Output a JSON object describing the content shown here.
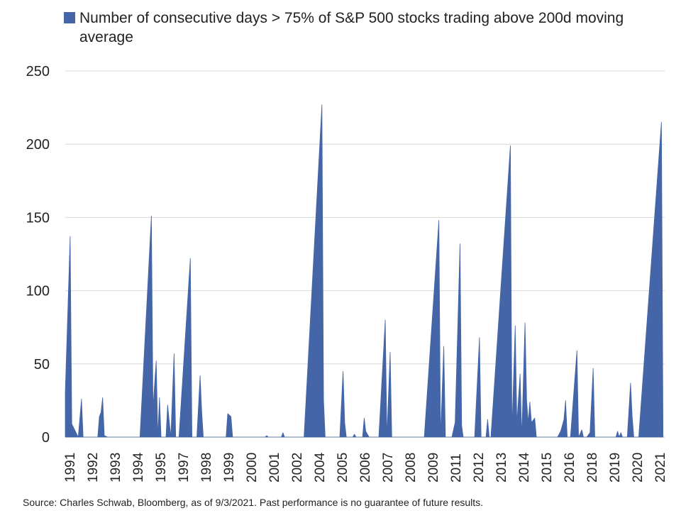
{
  "chart_data": {
    "type": "area",
    "title": "",
    "xlabel": "",
    "ylabel": "",
    "ylim": [
      0,
      250
    ],
    "yticks": [
      0,
      50,
      100,
      150,
      200,
      250
    ],
    "grid": "horizontal",
    "legend_placement": "top-left",
    "color": "#4466a8",
    "xtick_labels": [
      "1991",
      "1992",
      "1993",
      "1994",
      "1995",
      "1997",
      "1998",
      "1999",
      "2000",
      "2001",
      "2002",
      "2004",
      "2005",
      "2006",
      "2007",
      "2008",
      "2009",
      "2011",
      "2012",
      "2013",
      "2014",
      "2015",
      "2016",
      "2018",
      "2019",
      "2020",
      "2021"
    ],
    "series": [
      {
        "name": "Number of consecutive days > 75% of S&P 500 stocks trading above 200d moving average",
        "points": [
          {
            "x": "1991-01",
            "y": 30
          },
          {
            "x": "1991-04",
            "y": 137
          },
          {
            "x": "1991-05",
            "y": 9
          },
          {
            "x": "1991-09",
            "y": 0
          },
          {
            "x": "1991-11",
            "y": 26
          },
          {
            "x": "1991-12",
            "y": 0
          },
          {
            "x": "1992-09",
            "y": 0
          },
          {
            "x": "1992-10",
            "y": 14
          },
          {
            "x": "1992-11",
            "y": 17
          },
          {
            "x": "1992-12",
            "y": 27
          },
          {
            "x": "1993-01",
            "y": 1
          },
          {
            "x": "1993-03",
            "y": 0
          },
          {
            "x": "1994-11",
            "y": 0
          },
          {
            "x": "1995-06",
            "y": 151
          },
          {
            "x": "1995-07",
            "y": 20
          },
          {
            "x": "1995-09",
            "y": 52
          },
          {
            "x": "1995-10",
            "y": 0
          },
          {
            "x": "1995-11",
            "y": 27
          },
          {
            "x": "1995-12",
            "y": 0
          },
          {
            "x": "1996-03",
            "y": 0
          },
          {
            "x": "1996-04",
            "y": 22
          },
          {
            "x": "1996-06",
            "y": 0
          },
          {
            "x": "1996-08",
            "y": 57
          },
          {
            "x": "1996-09",
            "y": 0
          },
          {
            "x": "1996-11",
            "y": 0
          },
          {
            "x": "1997-06",
            "y": 122
          },
          {
            "x": "1997-07",
            "y": 0
          },
          {
            "x": "1997-10",
            "y": 0
          },
          {
            "x": "1997-12",
            "y": 42
          },
          {
            "x": "1998-01",
            "y": 17
          },
          {
            "x": "1998-02",
            "y": 0
          },
          {
            "x": "1999-04",
            "y": 0
          },
          {
            "x": "1999-05",
            "y": 16
          },
          {
            "x": "1999-07",
            "y": 14
          },
          {
            "x": "1999-08",
            "y": 0
          },
          {
            "x": "2001-04",
            "y": 0
          },
          {
            "x": "2001-05",
            "y": 1
          },
          {
            "x": "2001-06",
            "y": 0
          },
          {
            "x": "2002-02",
            "y": 0
          },
          {
            "x": "2002-03",
            "y": 3
          },
          {
            "x": "2002-04",
            "y": 0
          },
          {
            "x": "2003-04",
            "y": 0
          },
          {
            "x": "2004-03",
            "y": 227
          },
          {
            "x": "2004-04",
            "y": 25
          },
          {
            "x": "2004-05",
            "y": 0
          },
          {
            "x": "2005-02",
            "y": 0
          },
          {
            "x": "2005-04",
            "y": 45
          },
          {
            "x": "2005-05",
            "y": 10
          },
          {
            "x": "2005-06",
            "y": 0
          },
          {
            "x": "2005-10",
            "y": 0
          },
          {
            "x": "2005-11",
            "y": 2
          },
          {
            "x": "2005-12",
            "y": 0
          },
          {
            "x": "2006-04",
            "y": 0
          },
          {
            "x": "2006-05",
            "y": 13
          },
          {
            "x": "2006-06",
            "y": 4
          },
          {
            "x": "2006-08",
            "y": 0
          },
          {
            "x": "2007-02",
            "y": 0
          },
          {
            "x": "2007-06",
            "y": 80
          },
          {
            "x": "2007-07",
            "y": 0
          },
          {
            "x": "2007-09",
            "y": 58
          },
          {
            "x": "2007-10",
            "y": 0
          },
          {
            "x": "2009-06",
            "y": 0
          },
          {
            "x": "2010-03",
            "y": 148
          },
          {
            "x": "2010-04",
            "y": 0
          },
          {
            "x": "2010-06",
            "y": 62
          },
          {
            "x": "2010-07",
            "y": 0
          },
          {
            "x": "2010-11",
            "y": 0
          },
          {
            "x": "2011-01",
            "y": 10
          },
          {
            "x": "2011-04",
            "y": 132
          },
          {
            "x": "2011-05",
            "y": 8
          },
          {
            "x": "2011-06",
            "y": 0
          },
          {
            "x": "2012-01",
            "y": 0
          },
          {
            "x": "2012-04",
            "y": 68
          },
          {
            "x": "2012-05",
            "y": 0
          },
          {
            "x": "2012-08",
            "y": 0
          },
          {
            "x": "2012-09",
            "y": 12
          },
          {
            "x": "2012-10",
            "y": 0
          },
          {
            "x": "2012-11",
            "y": 0
          },
          {
            "x": "2013-11",
            "y": 199
          },
          {
            "x": "2013-12",
            "y": 5
          },
          {
            "x": "2014-02",
            "y": 76
          },
          {
            "x": "2014-03",
            "y": 10
          },
          {
            "x": "2014-05",
            "y": 43
          },
          {
            "x": "2014-06",
            "y": 0
          },
          {
            "x": "2014-08",
            "y": 78
          },
          {
            "x": "2014-09",
            "y": 25
          },
          {
            "x": "2014-10",
            "y": 10
          },
          {
            "x": "2014-11",
            "y": 24
          },
          {
            "x": "2014-12",
            "y": 10
          },
          {
            "x": "2015-02",
            "y": 13
          },
          {
            "x": "2015-03",
            "y": 0
          },
          {
            "x": "2016-04",
            "y": 0
          },
          {
            "x": "2016-06",
            "y": 4
          },
          {
            "x": "2016-08",
            "y": 12
          },
          {
            "x": "2016-09",
            "y": 25
          },
          {
            "x": "2016-10",
            "y": 0
          },
          {
            "x": "2016-12",
            "y": 0
          },
          {
            "x": "2017-04",
            "y": 59
          },
          {
            "x": "2017-05",
            "y": 0
          },
          {
            "x": "2017-07",
            "y": 5
          },
          {
            "x": "2017-08",
            "y": 0
          },
          {
            "x": "2017-10",
            "y": 0
          },
          {
            "x": "2017-12",
            "y": 3
          },
          {
            "x": "2018-02",
            "y": 47
          },
          {
            "x": "2018-03",
            "y": 0
          },
          {
            "x": "2019-04",
            "y": 0
          },
          {
            "x": "2019-05",
            "y": 4
          },
          {
            "x": "2019-06",
            "y": 0
          },
          {
            "x": "2019-07",
            "y": 3
          },
          {
            "x": "2019-08",
            "y": 0
          },
          {
            "x": "2019-11",
            "y": 0
          },
          {
            "x": "2020-01",
            "y": 37
          },
          {
            "x": "2020-02",
            "y": 14
          },
          {
            "x": "2020-03",
            "y": 0
          },
          {
            "x": "2020-06",
            "y": 0
          },
          {
            "x": "2021-08",
            "y": 215
          },
          {
            "x": "2021-09",
            "y": 0
          }
        ]
      }
    ]
  },
  "legend": {
    "label": "Number of consecutive days > 75% of S&P 500 stocks trading above 200d moving average"
  },
  "footer": {
    "source": "Source: Charles Schwab, Bloomberg, as of 9/3/2021.  Past performance is no guarantee of future results."
  }
}
